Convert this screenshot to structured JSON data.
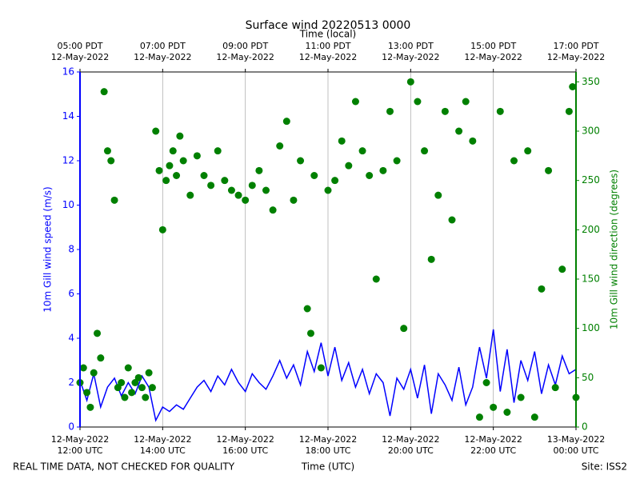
{
  "chart_data": {
    "type": "dual-axis-timeseries",
    "title": "Surface wind 20220513 0000",
    "x2label": "Time (local)",
    "xlabel": "Time (UTC)",
    "ylabel": "10m Gill wind speed (m/s)",
    "y2label": "10m Gill wind direction (degrees)",
    "footer_left": "REAL TIME DATA, NOT CHECKED FOR QUALITY",
    "footer_right": "Site: ISS2",
    "xlim": [
      "2022-05-12 12:00",
      "2022-05-13 00:00"
    ],
    "xticks": [
      {
        "value": "2022-05-12 12:00",
        "label": "12-May-2022\n12:00 UTC"
      },
      {
        "value": "2022-05-12 14:00",
        "label": "12-May-2022\n14:00 UTC"
      },
      {
        "value": "2022-05-12 16:00",
        "label": "12-May-2022\n16:00 UTC"
      },
      {
        "value": "2022-05-12 18:00",
        "label": "12-May-2022\n18:00 UTC"
      },
      {
        "value": "2022-05-12 20:00",
        "label": "12-May-2022\n20:00 UTC"
      },
      {
        "value": "2022-05-12 22:00",
        "label": "12-May-2022\n22:00 UTC"
      },
      {
        "value": "2022-05-13 00:00",
        "label": "13-May-2022\n00:00 UTC"
      }
    ],
    "x2ticks": [
      {
        "value": "2022-05-12 12:00",
        "label": "05:00 PDT\n12-May-2022"
      },
      {
        "value": "2022-05-12 14:00",
        "label": "07:00 PDT\n12-May-2022"
      },
      {
        "value": "2022-05-12 16:00",
        "label": "09:00 PDT\n12-May-2022"
      },
      {
        "value": "2022-05-12 18:00",
        "label": "11:00 PDT\n12-May-2022"
      },
      {
        "value": "2022-05-12 20:00",
        "label": "13:00 PDT\n12-May-2022"
      },
      {
        "value": "2022-05-12 22:00",
        "label": "15:00 PDT\n12-May-2022"
      },
      {
        "value": "2022-05-13 00:00",
        "label": "17:00 PDT\n12-May-2022"
      }
    ],
    "ylim": [
      0,
      16
    ],
    "yticks": [
      0,
      2,
      4,
      6,
      8,
      10,
      12,
      14,
      16
    ],
    "y2lim": [
      0,
      360
    ],
    "y2ticks": [
      0,
      50,
      100,
      150,
      200,
      250,
      300,
      350
    ],
    "grid": true,
    "series": [
      {
        "style": "line",
        "axis": "y",
        "color": "#0000ff",
        "x": [
          "2022-05-12 12:00",
          "2022-05-12 12:10",
          "2022-05-12 12:20",
          "2022-05-12 12:30",
          "2022-05-12 12:40",
          "2022-05-12 12:50",
          "2022-05-12 13:00",
          "2022-05-12 13:10",
          "2022-05-12 13:20",
          "2022-05-12 13:30",
          "2022-05-12 13:40",
          "2022-05-12 13:50",
          "2022-05-12 14:00",
          "2022-05-12 14:10",
          "2022-05-12 14:20",
          "2022-05-12 14:30",
          "2022-05-12 14:40",
          "2022-05-12 14:50",
          "2022-05-12 15:00",
          "2022-05-12 15:10",
          "2022-05-12 15:20",
          "2022-05-12 15:30",
          "2022-05-12 15:40",
          "2022-05-12 15:50",
          "2022-05-12 16:00",
          "2022-05-12 16:10",
          "2022-05-12 16:20",
          "2022-05-12 16:30",
          "2022-05-12 16:40",
          "2022-05-12 16:50",
          "2022-05-12 17:00",
          "2022-05-12 17:10",
          "2022-05-12 17:20",
          "2022-05-12 17:30",
          "2022-05-12 17:40",
          "2022-05-12 17:50",
          "2022-05-12 18:00",
          "2022-05-12 18:10",
          "2022-05-12 18:20",
          "2022-05-12 18:30",
          "2022-05-12 18:40",
          "2022-05-12 18:50",
          "2022-05-12 19:00",
          "2022-05-12 19:10",
          "2022-05-12 19:20",
          "2022-05-12 19:30",
          "2022-05-12 19:40",
          "2022-05-12 19:50",
          "2022-05-12 20:00",
          "2022-05-12 20:10",
          "2022-05-12 20:20",
          "2022-05-12 20:30",
          "2022-05-12 20:40",
          "2022-05-12 20:50",
          "2022-05-12 21:00",
          "2022-05-12 21:10",
          "2022-05-12 21:20",
          "2022-05-12 21:30",
          "2022-05-12 21:40",
          "2022-05-12 21:50",
          "2022-05-12 22:00",
          "2022-05-12 22:10",
          "2022-05-12 22:20",
          "2022-05-12 22:30",
          "2022-05-12 22:40",
          "2022-05-12 22:50",
          "2022-05-12 23:00",
          "2022-05-12 23:10",
          "2022-05-12 23:20",
          "2022-05-12 23:30",
          "2022-05-12 23:40",
          "2022-05-12 23:50",
          "2022-05-13 00:00"
        ],
        "values": [
          2.1,
          1.2,
          2.4,
          0.9,
          1.8,
          2.2,
          1.4,
          2.0,
          1.5,
          2.3,
          1.8,
          0.3,
          0.9,
          0.7,
          1.0,
          0.8,
          1.3,
          1.8,
          2.1,
          1.6,
          2.3,
          1.9,
          2.6,
          2.0,
          1.6,
          2.4,
          2.0,
          1.7,
          2.3,
          3.0,
          2.2,
          2.8,
          1.9,
          3.4,
          2.5,
          3.8,
          2.3,
          3.6,
          2.1,
          2.9,
          1.8,
          2.6,
          1.5,
          2.4,
          2.0,
          0.5,
          2.2,
          1.7,
          2.6,
          1.3,
          2.8,
          0.6,
          2.4,
          1.9,
          1.2,
          2.7,
          1.0,
          1.8,
          3.6,
          2.2,
          4.4,
          1.6,
          3.5,
          1.1,
          3.0,
          2.1,
          3.4,
          1.5,
          2.8,
          1.9,
          3.2,
          2.4,
          2.6
        ]
      },
      {
        "style": "dots",
        "axis": "y2",
        "color": "#008000",
        "x": [
          "2022-05-12 12:00",
          "2022-05-12 12:05",
          "2022-05-12 12:10",
          "2022-05-12 12:15",
          "2022-05-12 12:20",
          "2022-05-12 12:25",
          "2022-05-12 12:30",
          "2022-05-12 12:35",
          "2022-05-12 12:40",
          "2022-05-12 12:45",
          "2022-05-12 12:50",
          "2022-05-12 12:55",
          "2022-05-12 13:00",
          "2022-05-12 13:05",
          "2022-05-12 13:10",
          "2022-05-12 13:15",
          "2022-05-12 13:20",
          "2022-05-12 13:25",
          "2022-05-12 13:30",
          "2022-05-12 13:35",
          "2022-05-12 13:40",
          "2022-05-12 13:45",
          "2022-05-12 13:50",
          "2022-05-12 13:55",
          "2022-05-12 14:00",
          "2022-05-12 14:05",
          "2022-05-12 14:10",
          "2022-05-12 14:15",
          "2022-05-12 14:20",
          "2022-05-12 14:25",
          "2022-05-12 14:30",
          "2022-05-12 14:40",
          "2022-05-12 14:50",
          "2022-05-12 15:00",
          "2022-05-12 15:10",
          "2022-05-12 15:20",
          "2022-05-12 15:30",
          "2022-05-12 15:40",
          "2022-05-12 15:50",
          "2022-05-12 16:00",
          "2022-05-12 16:10",
          "2022-05-12 16:20",
          "2022-05-12 16:30",
          "2022-05-12 16:40",
          "2022-05-12 16:50",
          "2022-05-12 17:00",
          "2022-05-12 17:10",
          "2022-05-12 17:20",
          "2022-05-12 17:30",
          "2022-05-12 17:35",
          "2022-05-12 17:40",
          "2022-05-12 17:50",
          "2022-05-12 18:00",
          "2022-05-12 18:10",
          "2022-05-12 18:20",
          "2022-05-12 18:30",
          "2022-05-12 18:40",
          "2022-05-12 18:50",
          "2022-05-12 19:00",
          "2022-05-12 19:10",
          "2022-05-12 19:20",
          "2022-05-12 19:30",
          "2022-05-12 19:40",
          "2022-05-12 19:50",
          "2022-05-12 20:00",
          "2022-05-12 20:10",
          "2022-05-12 20:20",
          "2022-05-12 20:30",
          "2022-05-12 20:40",
          "2022-05-12 20:50",
          "2022-05-12 21:00",
          "2022-05-12 21:10",
          "2022-05-12 21:20",
          "2022-05-12 21:30",
          "2022-05-12 21:40",
          "2022-05-12 21:50",
          "2022-05-12 22:00",
          "2022-05-12 22:10",
          "2022-05-12 22:20",
          "2022-05-12 22:30",
          "2022-05-12 22:40",
          "2022-05-12 22:50",
          "2022-05-12 23:00",
          "2022-05-12 23:10",
          "2022-05-12 23:20",
          "2022-05-12 23:30",
          "2022-05-12 23:40",
          "2022-05-12 23:50",
          "2022-05-12 23:55",
          "2022-05-13 00:00"
        ],
        "values": [
          45,
          60,
          35,
          20,
          55,
          95,
          70,
          340,
          280,
          270,
          230,
          40,
          45,
          30,
          60,
          35,
          45,
          50,
          40,
          30,
          55,
          40,
          300,
          260,
          200,
          250,
          265,
          280,
          255,
          295,
          270,
          235,
          275,
          255,
          245,
          280,
          250,
          240,
          235,
          230,
          245,
          260,
          240,
          220,
          285,
          310,
          230,
          270,
          120,
          95,
          255,
          60,
          240,
          250,
          290,
          265,
          330,
          280,
          255,
          150,
          260,
          320,
          270,
          100,
          350,
          330,
          280,
          170,
          235,
          320,
          210,
          300,
          330,
          290,
          10,
          45,
          20,
          320,
          15,
          270,
          30,
          280,
          10,
          140,
          260,
          40,
          160,
          320,
          345,
          30
        ]
      }
    ]
  }
}
